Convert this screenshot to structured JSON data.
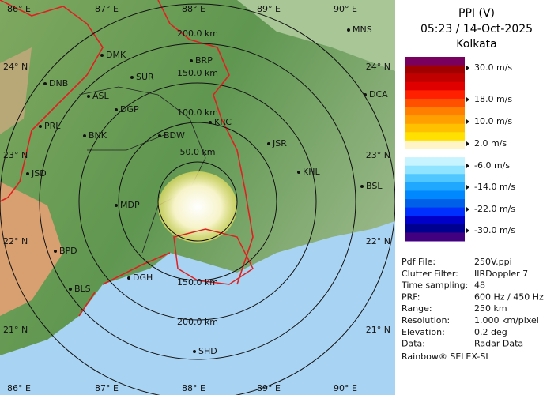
{
  "header": {
    "title": "PPI (V)",
    "datetime": "05:23 / 14-Oct-2025",
    "station": "Kolkata"
  },
  "legend": {
    "labels": [
      "30.0 m/s",
      "18.0 m/s",
      "10.0 m/s",
      "2.0 m/s",
      "-6.0 m/s",
      "-14.0 m/s",
      "-22.0 m/s",
      "-30.0 m/s"
    ]
  },
  "info": {
    "rows": [
      [
        "Pdf File:",
        "250V.ppi"
      ],
      [
        "Clutter Filter:",
        "IIRDoppler 7"
      ],
      [
        "Time sampling:",
        "48"
      ],
      [
        "PRF:",
        "600 Hz / 450 Hz"
      ],
      [
        "Range:",
        "250 km"
      ],
      [
        "Resolution:",
        "1.000 km/pixel"
      ],
      [
        "Elevation:",
        "0.2 deg"
      ],
      [
        "Data:",
        "Radar Data"
      ]
    ]
  },
  "footer": "Rainbow® SELEX-SI",
  "map": {
    "longitudes": [
      "86° E",
      "87° E",
      "88° E",
      "89° E",
      "90° E"
    ],
    "latitudes": [
      "24° N",
      "23° N",
      "22° N",
      "21° N"
    ],
    "rings": [
      "50.0 km",
      "100.0 km",
      "150.0 km",
      "200.0 km"
    ],
    "cities": [
      "MNS",
      "DMK",
      "BRP",
      "SUR",
      "DNB",
      "ASL",
      "DGP",
      "DCA",
      "PRL",
      "BNK",
      "KRC",
      "BDW",
      "JSR",
      "KHL",
      "JSD",
      "BSL",
      "MDP",
      "BPD",
      "DGH",
      "BLS",
      "SHD"
    ]
  }
}
